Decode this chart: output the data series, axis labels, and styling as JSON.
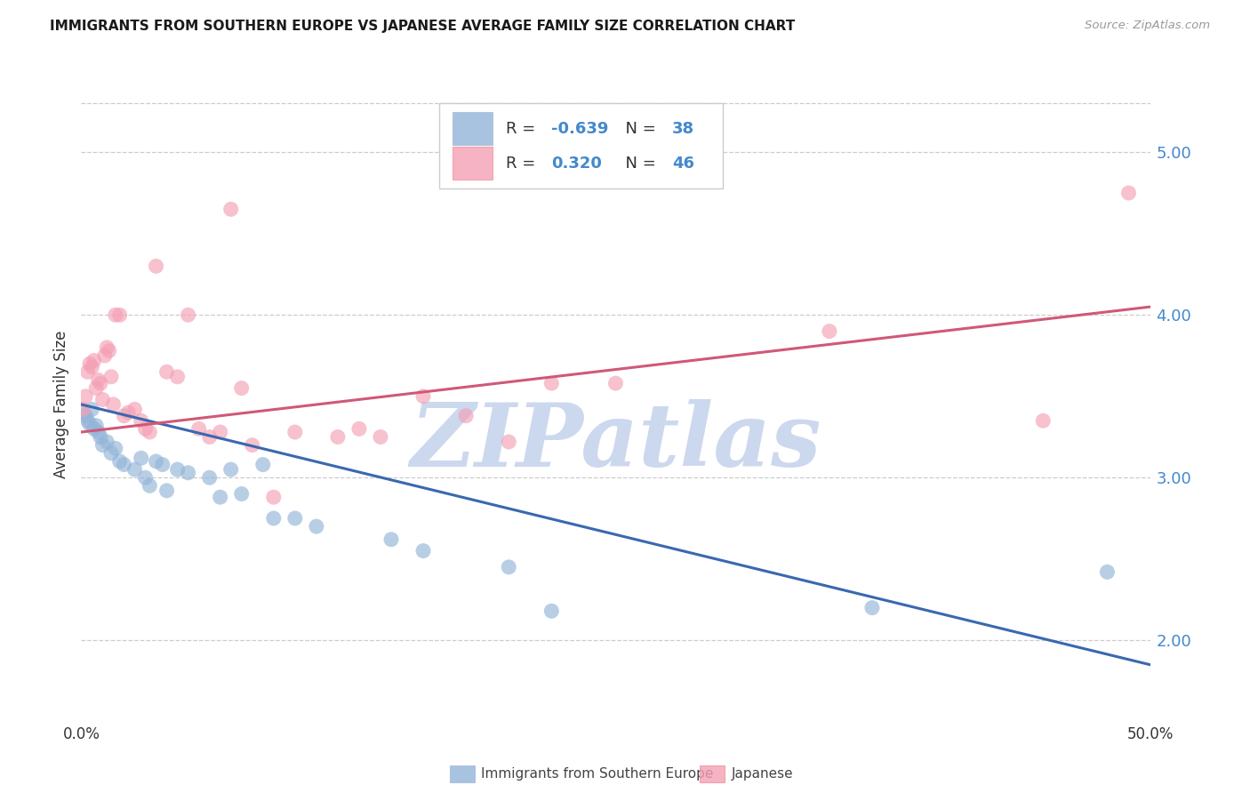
{
  "title": "IMMIGRANTS FROM SOUTHERN EUROPE VS JAPANESE AVERAGE FAMILY SIZE CORRELATION CHART",
  "source": "Source: ZipAtlas.com",
  "ylabel": "Average Family Size",
  "yticks": [
    2.0,
    3.0,
    4.0,
    5.0
  ],
  "xlim": [
    0.0,
    0.5
  ],
  "ylim": [
    1.5,
    5.4
  ],
  "legend_label_blue": "Immigrants from Southern Europe",
  "legend_label_pink": "Japanese",
  "blue_scatter": [
    [
      0.001,
      3.4
    ],
    [
      0.002,
      3.38
    ],
    [
      0.003,
      3.35
    ],
    [
      0.004,
      3.33
    ],
    [
      0.005,
      3.42
    ],
    [
      0.006,
      3.3
    ],
    [
      0.007,
      3.32
    ],
    [
      0.008,
      3.28
    ],
    [
      0.009,
      3.25
    ],
    [
      0.01,
      3.2
    ],
    [
      0.012,
      3.22
    ],
    [
      0.014,
      3.15
    ],
    [
      0.016,
      3.18
    ],
    [
      0.018,
      3.1
    ],
    [
      0.02,
      3.08
    ],
    [
      0.025,
      3.05
    ],
    [
      0.028,
      3.12
    ],
    [
      0.03,
      3.0
    ],
    [
      0.032,
      2.95
    ],
    [
      0.035,
      3.1
    ],
    [
      0.038,
      3.08
    ],
    [
      0.04,
      2.92
    ],
    [
      0.045,
      3.05
    ],
    [
      0.05,
      3.03
    ],
    [
      0.06,
      3.0
    ],
    [
      0.065,
      2.88
    ],
    [
      0.07,
      3.05
    ],
    [
      0.075,
      2.9
    ],
    [
      0.085,
      3.08
    ],
    [
      0.09,
      2.75
    ],
    [
      0.1,
      2.75
    ],
    [
      0.11,
      2.7
    ],
    [
      0.145,
      2.62
    ],
    [
      0.16,
      2.55
    ],
    [
      0.2,
      2.45
    ],
    [
      0.22,
      2.18
    ],
    [
      0.37,
      2.2
    ],
    [
      0.48,
      2.42
    ]
  ],
  "pink_scatter": [
    [
      0.001,
      3.42
    ],
    [
      0.002,
      3.5
    ],
    [
      0.003,
      3.65
    ],
    [
      0.004,
      3.7
    ],
    [
      0.005,
      3.68
    ],
    [
      0.006,
      3.72
    ],
    [
      0.007,
      3.55
    ],
    [
      0.008,
      3.6
    ],
    [
      0.009,
      3.58
    ],
    [
      0.01,
      3.48
    ],
    [
      0.011,
      3.75
    ],
    [
      0.012,
      3.8
    ],
    [
      0.013,
      3.78
    ],
    [
      0.014,
      3.62
    ],
    [
      0.015,
      3.45
    ],
    [
      0.016,
      4.0
    ],
    [
      0.018,
      4.0
    ],
    [
      0.02,
      3.38
    ],
    [
      0.022,
      3.4
    ],
    [
      0.025,
      3.42
    ],
    [
      0.028,
      3.35
    ],
    [
      0.03,
      3.3
    ],
    [
      0.032,
      3.28
    ],
    [
      0.035,
      4.3
    ],
    [
      0.04,
      3.65
    ],
    [
      0.045,
      3.62
    ],
    [
      0.05,
      4.0
    ],
    [
      0.055,
      3.3
    ],
    [
      0.06,
      3.25
    ],
    [
      0.065,
      3.28
    ],
    [
      0.07,
      4.65
    ],
    [
      0.075,
      3.55
    ],
    [
      0.08,
      3.2
    ],
    [
      0.09,
      2.88
    ],
    [
      0.1,
      3.28
    ],
    [
      0.12,
      3.25
    ],
    [
      0.13,
      3.3
    ],
    [
      0.14,
      3.25
    ],
    [
      0.16,
      3.5
    ],
    [
      0.18,
      3.38
    ],
    [
      0.2,
      3.22
    ],
    [
      0.22,
      3.58
    ],
    [
      0.25,
      3.58
    ],
    [
      0.35,
      3.9
    ],
    [
      0.45,
      3.35
    ],
    [
      0.49,
      4.75
    ]
  ],
  "blue_line": [
    [
      0.0,
      3.45
    ],
    [
      0.5,
      1.85
    ]
  ],
  "pink_line": [
    [
      0.0,
      3.28
    ],
    [
      0.5,
      4.05
    ]
  ],
  "blue_scatter_color": "#92b4d8",
  "pink_scatter_color": "#f4a0b5",
  "blue_line_color": "#3a68b0",
  "pink_line_color": "#d05878",
  "tick_color": "#4488cc",
  "background_color": "#ffffff",
  "grid_color": "#cccccc",
  "watermark_color": "#ccd8ee"
}
